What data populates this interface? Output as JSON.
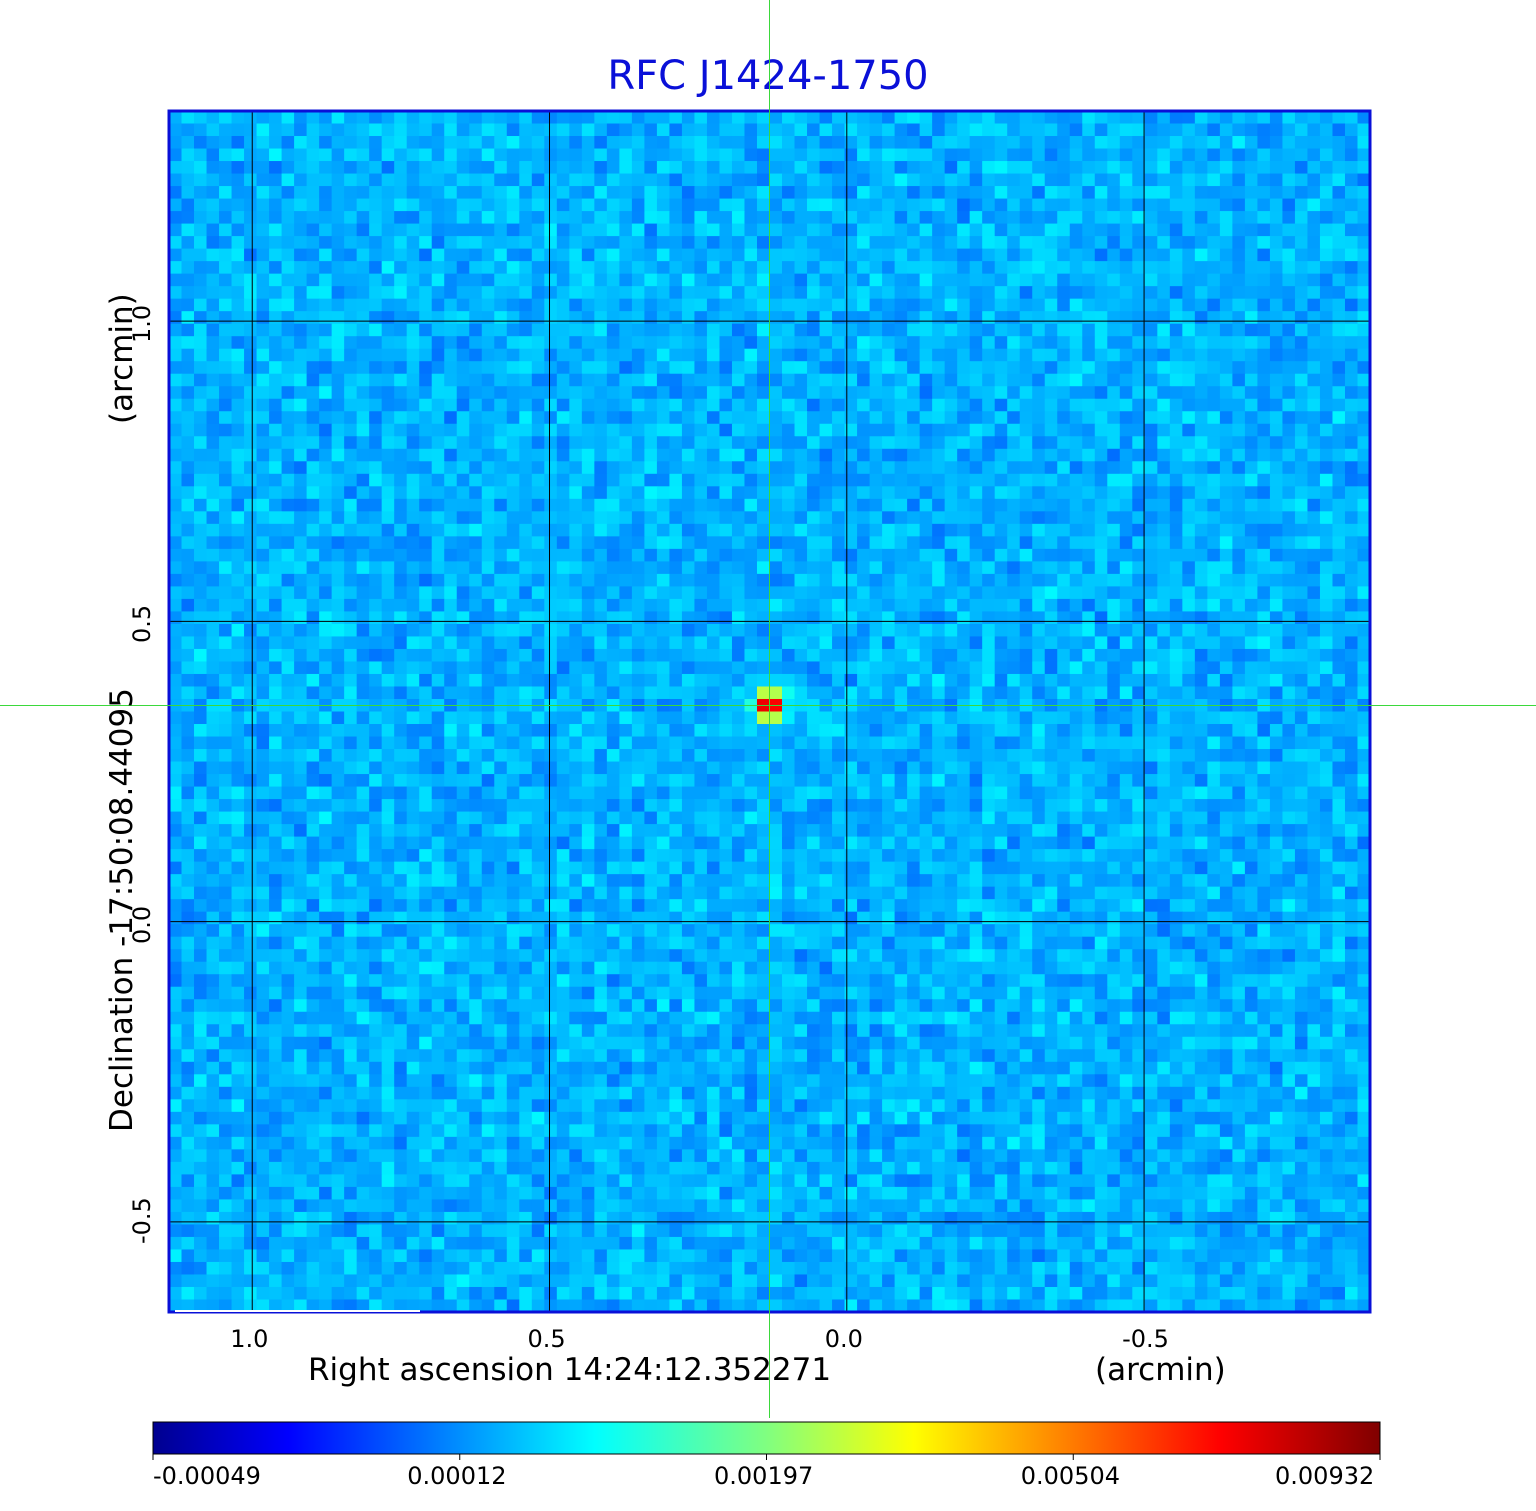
{
  "chart_data": {
    "type": "heatmap",
    "title": "RFC J1424-1750",
    "xlabel": "Right ascension  14:24:12.352271",
    "xunit": "(arcmin)",
    "ylabel": "Declination  -17:50:08.44095",
    "yunit": "(arcmin)",
    "xlim": [
      1.14,
      -0.88
    ],
    "ylim": [
      -0.65,
      1.35
    ],
    "x_ticks": [
      {
        "value": 1.0,
        "label": "1.0"
      },
      {
        "value": 0.5,
        "label": "0.5"
      },
      {
        "value": 0.0,
        "label": "0.0"
      },
      {
        "value": -0.5,
        "label": "-0.5"
      }
    ],
    "y_ticks": [
      {
        "value": 1.0,
        "label": "1.0"
      },
      {
        "value": 0.5,
        "label": "0.5"
      },
      {
        "value": 0.0,
        "label": "0.0"
      },
      {
        "value": -0.5,
        "label": "-0.5"
      }
    ],
    "grid": true,
    "crosshair": {
      "x": 0.13,
      "y": 0.36
    },
    "source": {
      "x": 0.13,
      "y": 0.36,
      "peak": 0.00932
    },
    "background_level": 0.00012,
    "colorbar": {
      "tick_labels": [
        "-0.00049",
        "0.00012",
        "0.00197",
        "0.00504",
        "0.00932"
      ],
      "colormap": "jet"
    }
  },
  "colors": {
    "title": "#0a10d8",
    "frame": "#0a10d8",
    "crosshair": "#3bd83b",
    "grid": "#000000"
  }
}
